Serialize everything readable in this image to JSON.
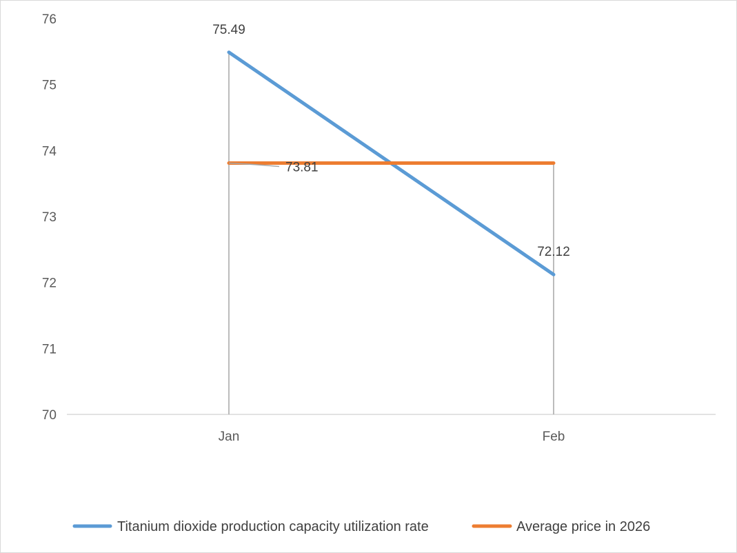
{
  "chart_data": {
    "type": "line",
    "categories": [
      "Jan",
      "Feb"
    ],
    "series": [
      {
        "name": "Titanium dioxide production capacity utilization rate",
        "values": [
          75.49,
          72.12
        ],
        "color": "#5B9BD5",
        "labels": [
          "75.49",
          "72.12"
        ]
      },
      {
        "name": "Average price in 2026",
        "values": [
          73.81,
          73.81
        ],
        "color": "#ED7D31",
        "labels": [
          "73.81",
          ""
        ]
      }
    ],
    "ylim": [
      70,
      76
    ],
    "yticks": [
      "70",
      "71",
      "72",
      "73",
      "74",
      "75",
      "76"
    ],
    "drop_lines": true,
    "grid": false,
    "legend_position": "bottom",
    "title": "",
    "xlabel": "",
    "ylabel": ""
  }
}
